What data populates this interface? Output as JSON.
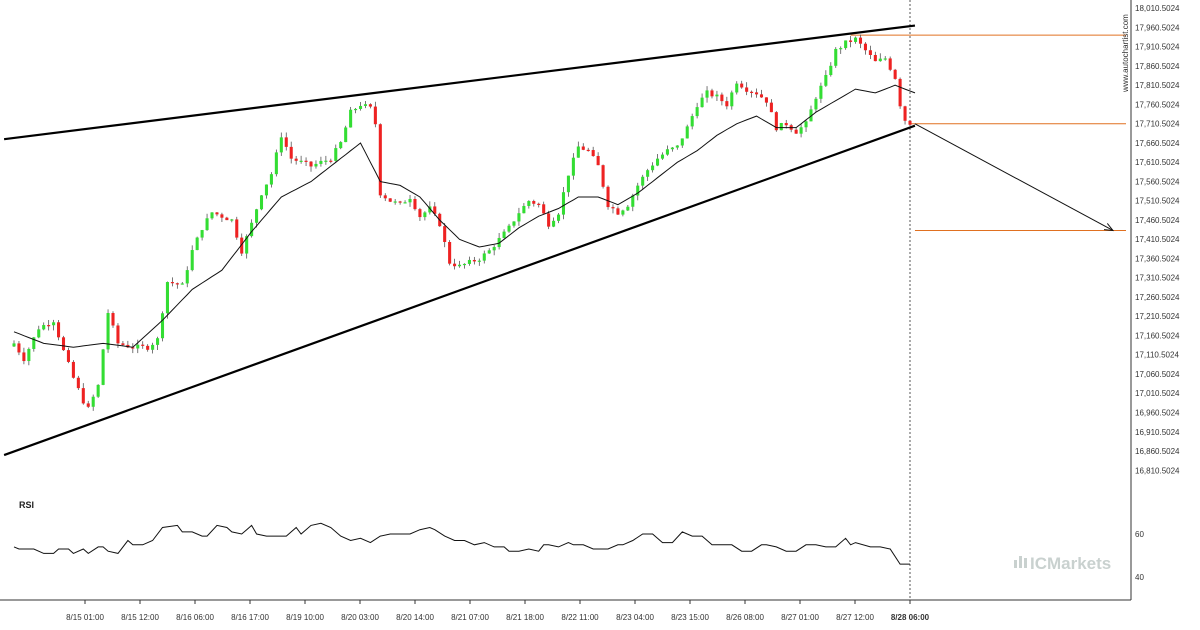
{
  "watermark": "www.autochartist.com",
  "brand": {
    "prefix": "IC",
    "name": "Markets"
  },
  "colors": {
    "bull": "#33dd33",
    "bear": "#ee2222",
    "level": "#e07020",
    "trend": "#000000",
    "ma": "#111111"
  },
  "chart_data": {
    "type": "candlestick",
    "title": "",
    "price_axis": {
      "range": [
        16790.5024,
        18010.5024
      ],
      "ticks": [
        "18,010.5024",
        "17,960.5024",
        "17,910.5024",
        "17,860.5024",
        "17,810.5024",
        "17,760.5024",
        "17,710.5024",
        "17,660.5024",
        "17,610.5024",
        "17,560.5024",
        "17,510.5024",
        "17,460.5024",
        "17,410.5024",
        "17,360.5024",
        "17,310.5024",
        "17,260.5024",
        "17,210.5024",
        "17,160.5024",
        "17,110.5024",
        "17,060.5024",
        "17,010.5024",
        "16,960.5024",
        "16,910.5024",
        "16,860.5024",
        "16,810.5024"
      ]
    },
    "time_axis": {
      "ticks": [
        "8/15 01:00",
        "8/15 12:00",
        "8/16 06:00",
        "8/16 17:00",
        "8/19 10:00",
        "8/20 03:00",
        "8/20 14:00",
        "8/21 07:00",
        "8/21 18:00",
        "8/22 11:00",
        "8/23 04:00",
        "8/23 15:00",
        "8/26 08:00",
        "8/27 01:00",
        "8/27 12:00",
        "8/28 06:00"
      ],
      "highlight": "8/28 06:00"
    },
    "close_anchors": [
      [
        0,
        17140
      ],
      [
        2,
        17100
      ],
      [
        5,
        17180
      ],
      [
        8,
        17200
      ],
      [
        10,
        17120
      ],
      [
        12,
        17050
      ],
      [
        14,
        16990
      ],
      [
        15,
        16970
      ],
      [
        17,
        17030
      ],
      [
        19,
        17220
      ],
      [
        21,
        17140
      ],
      [
        24,
        17130
      ],
      [
        27,
        17130
      ],
      [
        29,
        17150
      ],
      [
        31,
        17300
      ],
      [
        34,
        17290
      ],
      [
        36,
        17380
      ],
      [
        38,
        17440
      ],
      [
        40,
        17480
      ],
      [
        44,
        17460
      ],
      [
        46,
        17380
      ],
      [
        48,
        17450
      ],
      [
        50,
        17530
      ],
      [
        52,
        17580
      ],
      [
        54,
        17680
      ],
      [
        56,
        17620
      ],
      [
        58,
        17610
      ],
      [
        60,
        17600
      ],
      [
        62,
        17610
      ],
      [
        64,
        17620
      ],
      [
        66,
        17660
      ],
      [
        68,
        17740
      ],
      [
        70,
        17760
      ],
      [
        72,
        17750
      ],
      [
        73,
        17710
      ],
      [
        74,
        17530
      ],
      [
        76,
        17510
      ],
      [
        78,
        17500
      ],
      [
        80,
        17520
      ],
      [
        82,
        17470
      ],
      [
        84,
        17490
      ],
      [
        86,
        17450
      ],
      [
        88,
        17350
      ],
      [
        90,
        17340
      ],
      [
        92,
        17350
      ],
      [
        94,
        17360
      ],
      [
        96,
        17380
      ],
      [
        98,
        17410
      ],
      [
        100,
        17440
      ],
      [
        102,
        17480
      ],
      [
        104,
        17510
      ],
      [
        106,
        17500
      ],
      [
        108,
        17450
      ],
      [
        110,
        17480
      ],
      [
        112,
        17580
      ],
      [
        114,
        17650
      ],
      [
        116,
        17640
      ],
      [
        118,
        17600
      ],
      [
        120,
        17500
      ],
      [
        122,
        17480
      ],
      [
        124,
        17500
      ],
      [
        126,
        17550
      ],
      [
        128,
        17590
      ],
      [
        130,
        17620
      ],
      [
        132,
        17640
      ],
      [
        134,
        17650
      ],
      [
        136,
        17700
      ],
      [
        138,
        17760
      ],
      [
        140,
        17790
      ],
      [
        142,
        17780
      ],
      [
        144,
        17760
      ],
      [
        146,
        17820
      ],
      [
        148,
        17800
      ],
      [
        150,
        17790
      ],
      [
        152,
        17770
      ],
      [
        154,
        17700
      ],
      [
        156,
        17710
      ],
      [
        158,
        17690
      ],
      [
        160,
        17710
      ],
      [
        162,
        17780
      ],
      [
        164,
        17830
      ],
      [
        166,
        17900
      ],
      [
        168,
        17920
      ],
      [
        170,
        17930
      ],
      [
        172,
        17900
      ],
      [
        174,
        17870
      ],
      [
        176,
        17880
      ],
      [
        178,
        17830
      ],
      [
        179,
        17760
      ],
      [
        180,
        17720
      ],
      [
        181,
        17712
      ]
    ],
    "moving_average_anchors": [
      [
        0,
        17170
      ],
      [
        6,
        17140
      ],
      [
        12,
        17130
      ],
      [
        18,
        17140
      ],
      [
        24,
        17130
      ],
      [
        30,
        17200
      ],
      [
        36,
        17280
      ],
      [
        42,
        17330
      ],
      [
        48,
        17430
      ],
      [
        54,
        17520
      ],
      [
        60,
        17560
      ],
      [
        66,
        17620
      ],
      [
        70,
        17660
      ],
      [
        74,
        17560
      ],
      [
        78,
        17550
      ],
      [
        82,
        17520
      ],
      [
        86,
        17460
      ],
      [
        90,
        17410
      ],
      [
        94,
        17390
      ],
      [
        98,
        17400
      ],
      [
        102,
        17440
      ],
      [
        106,
        17470
      ],
      [
        110,
        17490
      ],
      [
        114,
        17520
      ],
      [
        118,
        17520
      ],
      [
        122,
        17500
      ],
      [
        126,
        17530
      ],
      [
        130,
        17570
      ],
      [
        134,
        17610
      ],
      [
        138,
        17640
      ],
      [
        142,
        17680
      ],
      [
        146,
        17710
      ],
      [
        150,
        17730
      ],
      [
        154,
        17700
      ],
      [
        158,
        17700
      ],
      [
        162,
        17740
      ],
      [
        166,
        17770
      ],
      [
        170,
        17800
      ],
      [
        174,
        17790
      ],
      [
        178,
        17810
      ],
      [
        182,
        17790
      ]
    ],
    "trendlines": [
      {
        "name": "upper",
        "from": [
          -2,
          17670
        ],
        "to": [
          182,
          17965
        ]
      },
      {
        "name": "lower",
        "from": [
          -2,
          16850
        ],
        "to": [
          182,
          17705
        ]
      }
    ],
    "levels": [
      {
        "name": "resistance",
        "price": 17940,
        "from": 169,
        "to": 225
      },
      {
        "name": "breakout",
        "price": 17710,
        "from": 181,
        "to": 225
      },
      {
        "name": "target",
        "price": 17433,
        "from": 182,
        "to": 225
      }
    ],
    "projection": {
      "from": [
        182,
        17710
      ],
      "to": [
        222,
        17433
      ]
    },
    "rsi": {
      "label": "RSI",
      "ticks": [
        "60",
        "40"
      ],
      "range": [
        30,
        80
      ],
      "anchors": [
        [
          0,
          54
        ],
        [
          2,
          53
        ],
        [
          8,
          53
        ],
        [
          12,
          51
        ],
        [
          16,
          51
        ],
        [
          18,
          53
        ],
        [
          22,
          53
        ],
        [
          24,
          51
        ],
        [
          28,
          53
        ],
        [
          30,
          51
        ],
        [
          34,
          54
        ],
        [
          36,
          54
        ],
        [
          38,
          52
        ],
        [
          42,
          51
        ],
        [
          46,
          57
        ],
        [
          48,
          55
        ],
        [
          52,
          55
        ],
        [
          56,
          57
        ],
        [
          60,
          63
        ],
        [
          66,
          64
        ],
        [
          68,
          61
        ],
        [
          72,
          61
        ],
        [
          76,
          59
        ],
        [
          78,
          59
        ],
        [
          82,
          64
        ],
        [
          86,
          63
        ],
        [
          88,
          61
        ],
        [
          92,
          60
        ],
        [
          94,
          62
        ],
        [
          96,
          64
        ],
        [
          98,
          60
        ],
        [
          102,
          59
        ],
        [
          106,
          59
        ],
        [
          110,
          59
        ],
        [
          114,
          63
        ],
        [
          116,
          60
        ],
        [
          120,
          64
        ],
        [
          124,
          65
        ],
        [
          128,
          63
        ],
        [
          132,
          59
        ],
        [
          136,
          57
        ],
        [
          140,
          58
        ],
        [
          144,
          56
        ],
        [
          148,
          59
        ],
        [
          152,
          60
        ],
        [
          156,
          60
        ],
        [
          160,
          60
        ],
        [
          164,
          62
        ],
        [
          168,
          63
        ],
        [
          170,
          62
        ],
        [
          174,
          59
        ],
        [
          178,
          57
        ],
        [
          182,
          57
        ],
        [
          186,
          55
        ],
        [
          190,
          56
        ],
        [
          194,
          54
        ],
        [
          198,
          54
        ],
        [
          200,
          52
        ],
        [
          204,
          52
        ],
        [
          208,
          53
        ],
        [
          212,
          52
        ],
        [
          214,
          55
        ],
        [
          216,
          55
        ],
        [
          220,
          54
        ],
        [
          224,
          56
        ],
        [
          226,
          55
        ],
        [
          230,
          55
        ],
        [
          234,
          53
        ],
        [
          236,
          53
        ],
        [
          240,
          53
        ],
        [
          244,
          55
        ],
        [
          246,
          55
        ],
        [
          250,
          57
        ],
        [
          254,
          60
        ],
        [
          258,
          60
        ],
        [
          262,
          56
        ],
        [
          266,
          56
        ],
        [
          270,
          61
        ],
        [
          274,
          59
        ],
        [
          278,
          59
        ],
        [
          282,
          55
        ],
        [
          286,
          55
        ],
        [
          290,
          55
        ],
        [
          294,
          52
        ],
        [
          298,
          52
        ],
        [
          302,
          55
        ],
        [
          304,
          55
        ],
        [
          308,
          54
        ],
        [
          312,
          52
        ],
        [
          316,
          52
        ],
        [
          320,
          55
        ],
        [
          324,
          55
        ],
        [
          328,
          54
        ],
        [
          332,
          54
        ],
        [
          336,
          58
        ],
        [
          338,
          55
        ],
        [
          340,
          56
        ],
        [
          346,
          54
        ],
        [
          350,
          54
        ],
        [
          354,
          53
        ],
        [
          358,
          46
        ],
        [
          362,
          46
        ]
      ]
    }
  }
}
